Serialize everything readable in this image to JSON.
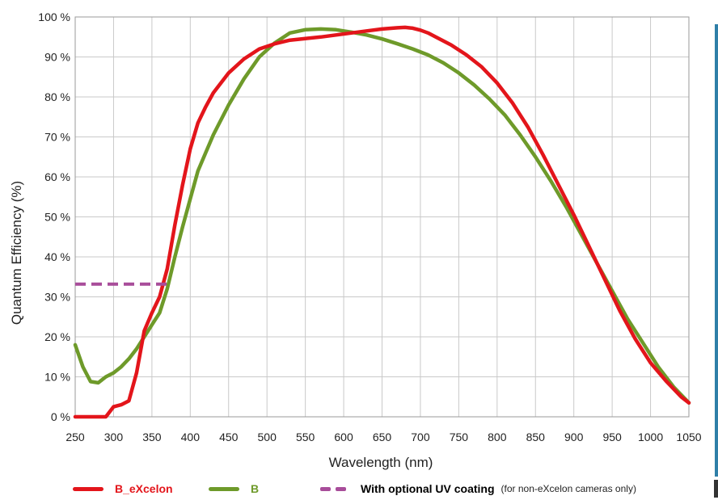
{
  "colors": {
    "b_excelon": "#e3151b",
    "b": "#6e9a2a",
    "uv": "#a84d9a",
    "grid": "#c9c9c9",
    "legend_text_red": "#e3151b",
    "legend_text_green": "#6e9a2a"
  },
  "chart_data": {
    "type": "line",
    "title": "",
    "xlabel": "Wavelength (nm)",
    "ylabel": "Quantum Efficiency (%)",
    "xlim": [
      250,
      1050
    ],
    "ylim": [
      0,
      100
    ],
    "x_ticks": [
      250,
      300,
      350,
      400,
      450,
      500,
      550,
      600,
      650,
      700,
      750,
      800,
      850,
      900,
      950,
      1000,
      1050
    ],
    "x_tick_labels": [
      "250",
      "300",
      "350",
      "400",
      "450",
      "500",
      "550",
      "600",
      "650",
      "700",
      "750",
      "800",
      "850",
      "900",
      "950",
      "1000",
      "1050"
    ],
    "y_ticks": [
      0,
      10,
      20,
      30,
      40,
      50,
      60,
      70,
      80,
      90,
      100
    ],
    "y_tick_labels": [
      "0 %",
      "10 %",
      "20 %",
      "30 %",
      "40 %",
      "50 %",
      "60 %",
      "70 %",
      "80 %",
      "90 %",
      "100 %"
    ],
    "grid": true,
    "legend_position": "bottom",
    "series": [
      {
        "name": "B_eXcelon",
        "style": "solid",
        "x": [
          250,
          290,
          300,
          310,
          320,
          330,
          340,
          350,
          360,
          370,
          380,
          390,
          400,
          410,
          420,
          430,
          450,
          470,
          490,
          510,
          530,
          550,
          570,
          590,
          610,
          630,
          650,
          670,
          680,
          690,
          700,
          710,
          720,
          740,
          760,
          780,
          800,
          820,
          840,
          860,
          880,
          900,
          920,
          940,
          960,
          980,
          1000,
          1020,
          1040,
          1050
        ],
        "y": [
          0,
          0,
          2.5,
          3,
          4,
          11,
          21.5,
          26,
          30,
          37,
          48,
          58,
          67,
          73.5,
          77.5,
          81,
          86,
          89.5,
          92,
          93.3,
          94.2,
          94.6,
          95,
          95.5,
          96,
          96.5,
          97,
          97.3,
          97.4,
          97.2,
          96.7,
          96,
          95,
          93,
          90.5,
          87.5,
          83.5,
          78.5,
          72.5,
          65.5,
          58,
          50.5,
          42.5,
          34.5,
          26.5,
          19.5,
          13.5,
          9,
          5,
          3.5
        ]
      },
      {
        "name": "B",
        "style": "solid",
        "x": [
          250,
          260,
          270,
          280,
          290,
          300,
          310,
          320,
          330,
          340,
          350,
          360,
          370,
          380,
          390,
          400,
          410,
          420,
          430,
          450,
          470,
          490,
          510,
          530,
          550,
          570,
          590,
          610,
          630,
          650,
          670,
          690,
          710,
          730,
          750,
          770,
          790,
          810,
          830,
          850,
          870,
          890,
          910,
          930,
          950,
          970,
          990,
          1010,
          1030,
          1050
        ],
        "y": [
          18,
          12.5,
          8.8,
          8.5,
          10,
          11,
          12.5,
          14.5,
          17,
          20,
          23,
          26,
          32,
          40,
          47.5,
          54.5,
          61.5,
          66,
          70.5,
          78,
          84.5,
          90,
          93.5,
          96,
          96.8,
          97,
          96.8,
          96.2,
          95.5,
          94.5,
          93.3,
          92,
          90.5,
          88.5,
          86,
          83,
          79.5,
          75.5,
          70.5,
          65,
          59,
          52.5,
          45.5,
          38.5,
          31.5,
          24.5,
          18.5,
          12.5,
          7.5,
          3.5
        ]
      },
      {
        "name": "With optional UV coating",
        "note": "(for non-eXcelon cameras only)",
        "style": "dashed",
        "x": [
          250,
          375
        ],
        "y": [
          33.2,
          33.2
        ]
      }
    ]
  },
  "legend": {
    "items": [
      {
        "label": "B_eXcelon"
      },
      {
        "label": "B"
      },
      {
        "label": "With optional UV coating",
        "note": "(for non-eXcelon cameras only)"
      }
    ]
  }
}
